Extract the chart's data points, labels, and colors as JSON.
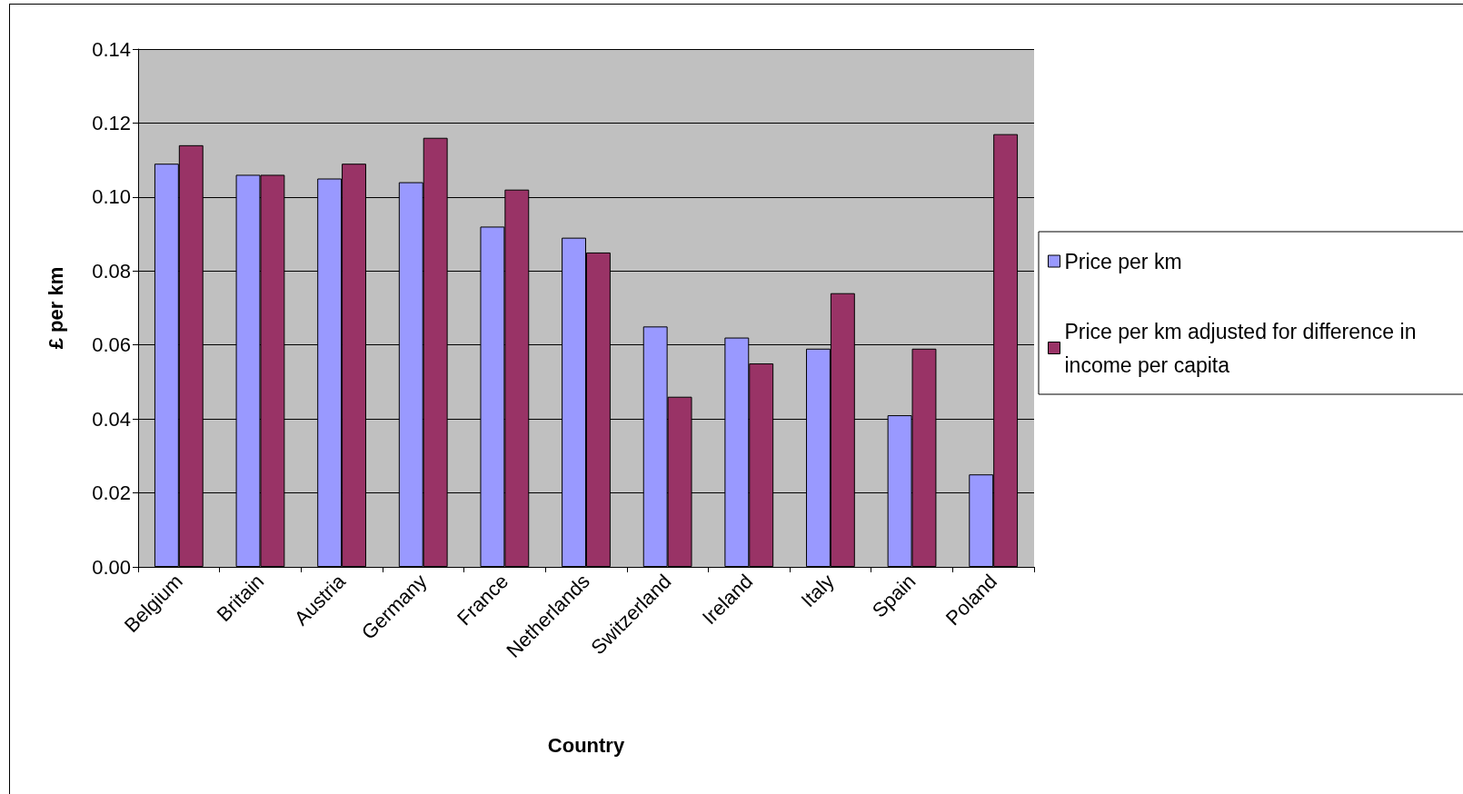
{
  "chart_data": {
    "type": "bar",
    "xlabel": "Country",
    "ylabel": "£ per km",
    "categories": [
      "Belgium",
      "Britain",
      "Austria",
      "Germany",
      "France",
      "Netherlands",
      "Switzerland",
      "Ireland",
      "Italy",
      "Spain",
      "Poland"
    ],
    "series": [
      {
        "name": "Price per km",
        "color": "#9999ff",
        "values": [
          0.109,
          0.106,
          0.105,
          0.104,
          0.092,
          0.089,
          0.065,
          0.062,
          0.059,
          0.041,
          0.025
        ]
      },
      {
        "name": "Price per km adjusted for difference in income per capita",
        "color": "#993366",
        "values": [
          0.114,
          0.106,
          0.109,
          0.116,
          0.102,
          0.085,
          0.046,
          0.055,
          0.074,
          0.059,
          0.117
        ]
      }
    ],
    "ylim": [
      0,
      0.14
    ],
    "yticks": [
      {
        "value": 0,
        "label": "0.00"
      },
      {
        "value": 0.02,
        "label": "0.02"
      },
      {
        "value": 0.04,
        "label": "0.04"
      },
      {
        "value": 0.06,
        "label": "0.06"
      },
      {
        "value": 0.08,
        "label": "0.08"
      },
      {
        "value": 0.1,
        "label": "0.10"
      },
      {
        "value": 0.12,
        "label": "0.12"
      },
      {
        "value": 0.14,
        "label": "0.14"
      }
    ],
    "grid": "y",
    "legend": "right"
  }
}
